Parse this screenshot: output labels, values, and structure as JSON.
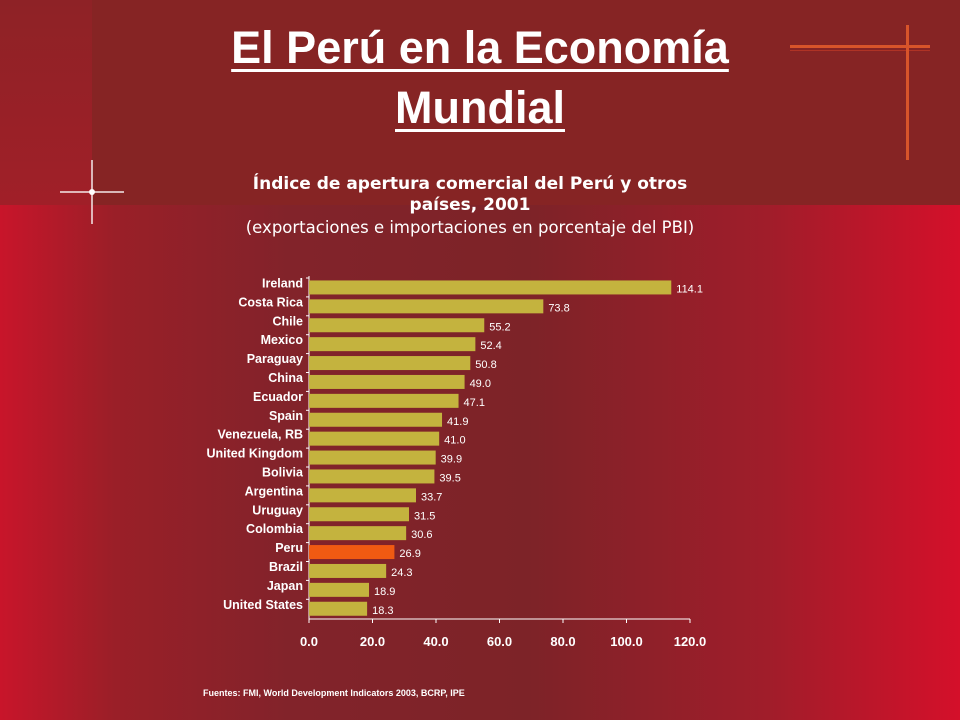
{
  "title_line1": "El Perú en la Economía",
  "title_line2": "Mundial",
  "subtitle_line1": "Índice de apertura comercial del Perú y otros",
  "subtitle_line2": "países, 2001",
  "subtitle_line3": "(exportaciones e importaciones en porcentaje del PBI)",
  "source": "Fuentes: FMI, World Development Indicators 2003, BCRP, IPE",
  "colors": {
    "bar": "#c4b33e",
    "highlight": "#f05a12",
    "text": "#ffffff"
  },
  "chart_data": {
    "type": "bar",
    "orientation": "horizontal",
    "categories": [
      "Ireland",
      "Costa Rica",
      "Chile",
      "Mexico",
      "Paraguay",
      "China",
      "Ecuador",
      "Spain",
      "Venezuela, RB",
      "United Kingdom",
      "Bolivia",
      "Argentina",
      "Uruguay",
      "Colombia",
      "Peru",
      "Brazil",
      "Japan",
      "United States"
    ],
    "values": [
      114.1,
      73.8,
      55.2,
      52.4,
      50.8,
      49.0,
      47.1,
      41.9,
      41.0,
      39.9,
      39.5,
      33.7,
      31.5,
      30.6,
      26.9,
      24.3,
      18.9,
      18.3
    ],
    "value_labels": [
      "114.1",
      "73.8",
      "55.2",
      "52.4",
      "50.8",
      "49.0",
      "47.1",
      "41.9",
      "41.0",
      "39.9",
      "39.5",
      "33.7",
      "31.5",
      "30.6",
      "26.9",
      "24.3",
      "18.9",
      "18.3"
    ],
    "highlight": "Peru",
    "xlim": [
      0,
      120
    ],
    "xticks": [
      "0.0",
      "20.0",
      "40.0",
      "60.0",
      "80.0",
      "100.0",
      "120.0"
    ],
    "grid": false
  }
}
